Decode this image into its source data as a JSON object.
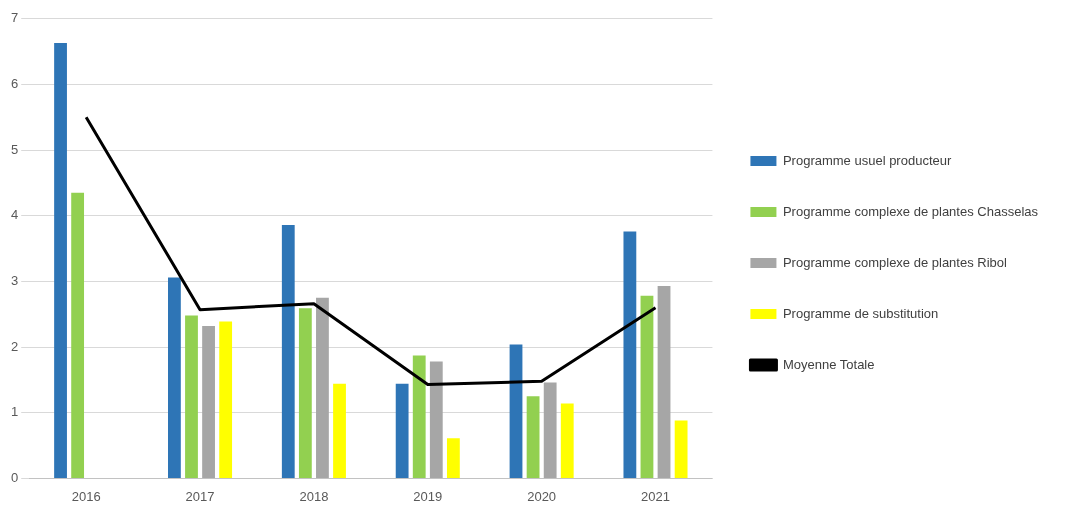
{
  "chart_data": {
    "type": "bar",
    "categories": [
      "2016",
      "2017",
      "2018",
      "2019",
      "2020",
      "2021"
    ],
    "series": [
      {
        "name": "Programme usuel producteur",
        "color": "#2e75b6",
        "values": [
          6.63,
          3.06,
          3.86,
          1.44,
          2.04,
          3.76
        ]
      },
      {
        "name": "Programme complexe de plantes Chasselas",
        "color": "#92d050",
        "values": [
          4.35,
          2.48,
          2.59,
          1.87,
          1.25,
          2.78
        ]
      },
      {
        "name": "Programme complexe de plantes Ribol",
        "color": "#a6a6a6",
        "values": [
          null,
          2.32,
          2.75,
          1.78,
          1.46,
          2.93
        ]
      },
      {
        "name": "Programme de substitution",
        "color": "#ffff00",
        "values": [
          null,
          2.39,
          1.44,
          0.61,
          1.14,
          0.88
        ]
      },
      {
        "name": "Moyenne Totale",
        "type": "line",
        "color": "#000000",
        "values": [
          5.5,
          2.57,
          2.66,
          1.43,
          1.48,
          2.6
        ],
        "marker": "none"
      }
    ],
    "ylim": [
      0,
      7
    ],
    "yticks": [
      0,
      1,
      2,
      3,
      4,
      5,
      6,
      7
    ],
    "grid": "y",
    "legend": "right"
  }
}
